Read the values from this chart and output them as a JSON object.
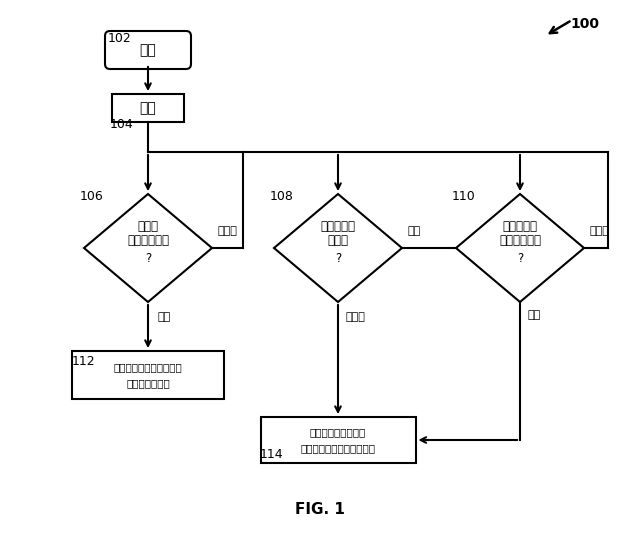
{
  "bg_color": "#ffffff",
  "fig_title": "FIG. 1",
  "label_100": "100",
  "label_102": "102",
  "label_104": "104",
  "label_106": "106",
  "label_108": "108",
  "label_110": "110",
  "label_112": "112",
  "label_114": "114",
  "node_kaishi": "開始",
  "node_kensa": "検査",
  "node_d106_line1": "呼気は",
  "node_d106_line2": "検出されたか",
  "node_d106_line3": "?",
  "node_d108_line1": "検査条件は",
  "node_d108_line2": "正常か",
  "node_d108_line3": "?",
  "node_d110_line1": "制限時間は",
  "node_d110_line2": "超えているか",
  "node_d110_line3": "?",
  "node_112_line1": "パッシブサンプルからの",
  "node_112_line2": "Ｂｒ　ＡＣ測定",
  "node_114_line1": "アクティブサンプル",
  "node_114_line2": "からのＢ　ｒ　Ａ　Ｃ測定",
  "yes_jp": "はい",
  "no_jp": "いいえ",
  "font_size_node": 9,
  "font_size_label": 9,
  "font_size_yn": 8,
  "font_size_title": 11
}
